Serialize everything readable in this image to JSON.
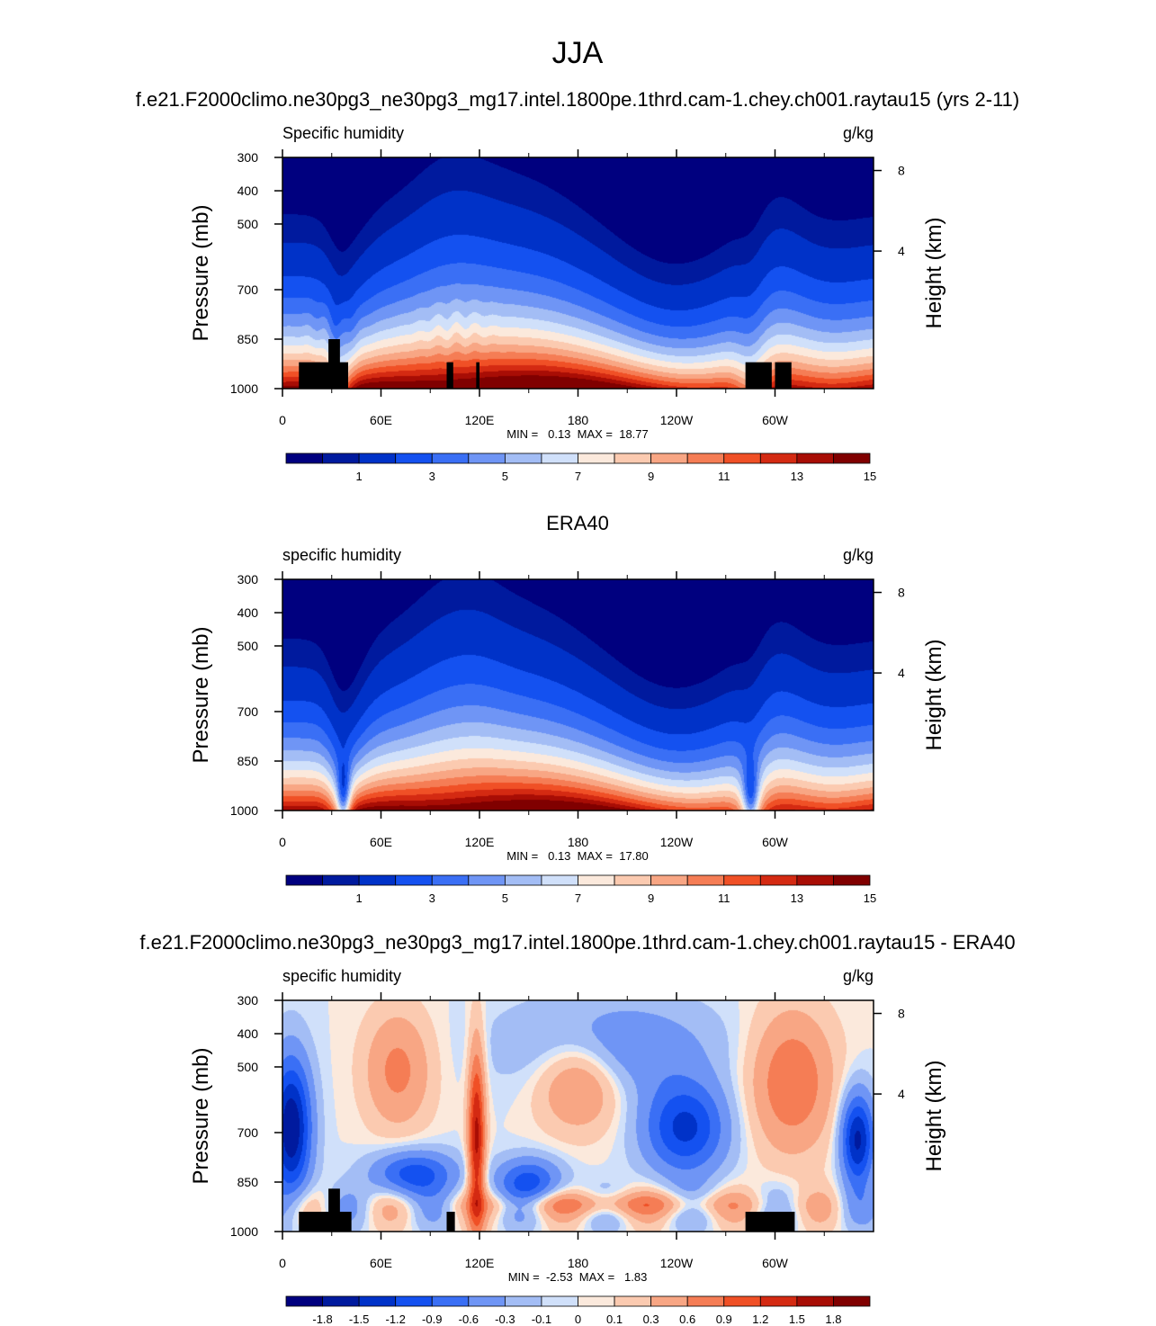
{
  "figure_title": "JJA",
  "chart_data": [
    {
      "type": "heatmap",
      "title": "f.e21.F2000climo.ne30pg3_ne30pg3_mg17.intel.1800pe.1thrd.cam-1.chey.ch001.raytau15 (yrs 2-11)",
      "left_label": "Specific humidity",
      "right_label": "g/kg",
      "ylabel": "Pressure (mb)",
      "y2label": "Height (km)",
      "x_ticks": [
        "0",
        "60E",
        "120E",
        "180",
        "120W",
        "60W"
      ],
      "x_tick_lon": [
        0,
        60,
        120,
        180,
        240,
        300
      ],
      "xlim": [
        0,
        360
      ],
      "y_ticks": [
        "300",
        "400",
        "500",
        "700",
        "850",
        "1000"
      ],
      "y_tick_p": [
        300,
        400,
        500,
        700,
        850,
        1000
      ],
      "ylim": [
        1000,
        300
      ],
      "y2_ticks": [
        "8",
        "4"
      ],
      "y2_tick_km": [
        8,
        4
      ],
      "min_label": "MIN =   0.13  MAX =  18.77",
      "min": 0.13,
      "max": 18.77,
      "colorbar_levels": [
        0.5,
        1,
        2,
        3,
        4,
        5,
        6,
        7,
        8,
        9,
        10,
        11,
        12,
        13,
        14,
        15
      ],
      "colorbar_labels": [
        "1",
        "3",
        "5",
        "7",
        "9",
        "11",
        "13",
        "15"
      ],
      "colors": [
        "#00007f",
        "#001a9e",
        "#0032c8",
        "#1451f0",
        "#3a6ff5",
        "#6f95f5",
        "#a3bdf5",
        "#d0e0fa",
        "#fbe9dc",
        "#fbcab0",
        "#f8a684",
        "#f57d55",
        "#f05026",
        "#d42a12",
        "#a80d05",
        "#800000"
      ]
    },
    {
      "type": "heatmap",
      "title": "ERA40",
      "left_label": "specific humidity",
      "right_label": "g/kg",
      "ylabel": "Pressure (mb)",
      "y2label": "Height (km)",
      "x_ticks": [
        "0",
        "60E",
        "120E",
        "180",
        "120W",
        "60W"
      ],
      "x_tick_lon": [
        0,
        60,
        120,
        180,
        240,
        300
      ],
      "xlim": [
        0,
        360
      ],
      "y_ticks": [
        "300",
        "400",
        "500",
        "700",
        "850",
        "1000"
      ],
      "y_tick_p": [
        300,
        400,
        500,
        700,
        850,
        1000
      ],
      "ylim": [
        1000,
        300
      ],
      "y2_ticks": [
        "8",
        "4"
      ],
      "y2_tick_km": [
        8,
        4
      ],
      "min_label": "MIN =   0.13  MAX =  17.80",
      "min": 0.13,
      "max": 17.8,
      "colorbar_levels": [
        0.5,
        1,
        2,
        3,
        4,
        5,
        6,
        7,
        8,
        9,
        10,
        11,
        12,
        13,
        14,
        15
      ],
      "colorbar_labels": [
        "1",
        "3",
        "5",
        "7",
        "9",
        "11",
        "13",
        "15"
      ],
      "colors": [
        "#00007f",
        "#001a9e",
        "#0032c8",
        "#1451f0",
        "#3a6ff5",
        "#6f95f5",
        "#a3bdf5",
        "#d0e0fa",
        "#fbe9dc",
        "#fbcab0",
        "#f8a684",
        "#f57d55",
        "#f05026",
        "#d42a12",
        "#a80d05",
        "#800000"
      ]
    },
    {
      "type": "heatmap",
      "title": "f.e21.F2000climo.ne30pg3_ne30pg3_mg17.intel.1800pe.1thrd.cam-1.chey.ch001.raytau15 - ERA40",
      "left_label": "specific humidity",
      "right_label": "g/kg",
      "ylabel": "Pressure (mb)",
      "y2label": "Height (km)",
      "x_ticks": [
        "0",
        "60E",
        "120E",
        "180",
        "120W",
        "60W"
      ],
      "x_tick_lon": [
        0,
        60,
        120,
        180,
        240,
        300
      ],
      "xlim": [
        0,
        360
      ],
      "y_ticks": [
        "300",
        "400",
        "500",
        "700",
        "850",
        "1000"
      ],
      "y_tick_p": [
        300,
        400,
        500,
        700,
        850,
        1000
      ],
      "ylim": [
        1000,
        300
      ],
      "y2_ticks": [
        "8",
        "4"
      ],
      "y2_tick_km": [
        8,
        4
      ],
      "min_label": "MIN =  -2.53  MAX =   1.83",
      "min": -2.53,
      "max": 1.83,
      "colorbar_levels": [
        -1.8,
        -1.5,
        -1.2,
        -0.9,
        -0.6,
        -0.3,
        -0.1,
        0,
        0.1,
        0.3,
        0.6,
        0.9,
        1.2,
        1.5,
        1.8
      ],
      "colorbar_labels": [
        "-1.8",
        "-1.5",
        "-1.2",
        "-0.9",
        "-0.6",
        "-0.3",
        "-0.1",
        "0",
        "0.1",
        "0.3",
        "0.6",
        "0.9",
        "1.2",
        "1.5",
        "1.8"
      ],
      "colors": [
        "#00007f",
        "#001a9e",
        "#0032c8",
        "#1451f0",
        "#3a6ff5",
        "#6f95f5",
        "#a3bdf5",
        "#d0e0fa",
        "#fbe9dc",
        "#fbcab0",
        "#f8a684",
        "#f57d55",
        "#f05026",
        "#d42a12",
        "#a80d05",
        "#800000"
      ]
    }
  ]
}
